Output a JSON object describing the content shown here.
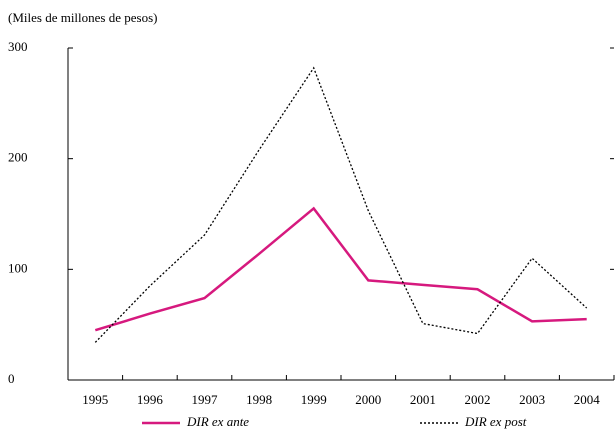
{
  "chart_data": {
    "type": "line",
    "y_label": "(Miles de millones de pesos)",
    "categories": [
      "1995",
      "1996",
      "1997",
      "1998",
      "1999",
      "2000",
      "2001",
      "2002",
      "2003",
      "2004"
    ],
    "series": [
      {
        "name": "DIR ex ante",
        "color": "#d6197e",
        "style": "solid",
        "values": [
          45,
          60,
          74,
          114,
          155,
          90,
          86,
          82,
          53,
          55
        ]
      },
      {
        "name": "DIR ex post",
        "color": "#000000",
        "style": "dotted",
        "values": [
          34,
          85,
          131,
          208,
          282,
          153,
          51,
          42,
          110,
          65
        ]
      }
    ],
    "ylim": [
      0,
      300
    ],
    "yticks": [
      0,
      100,
      200,
      300
    ],
    "grid": false
  }
}
